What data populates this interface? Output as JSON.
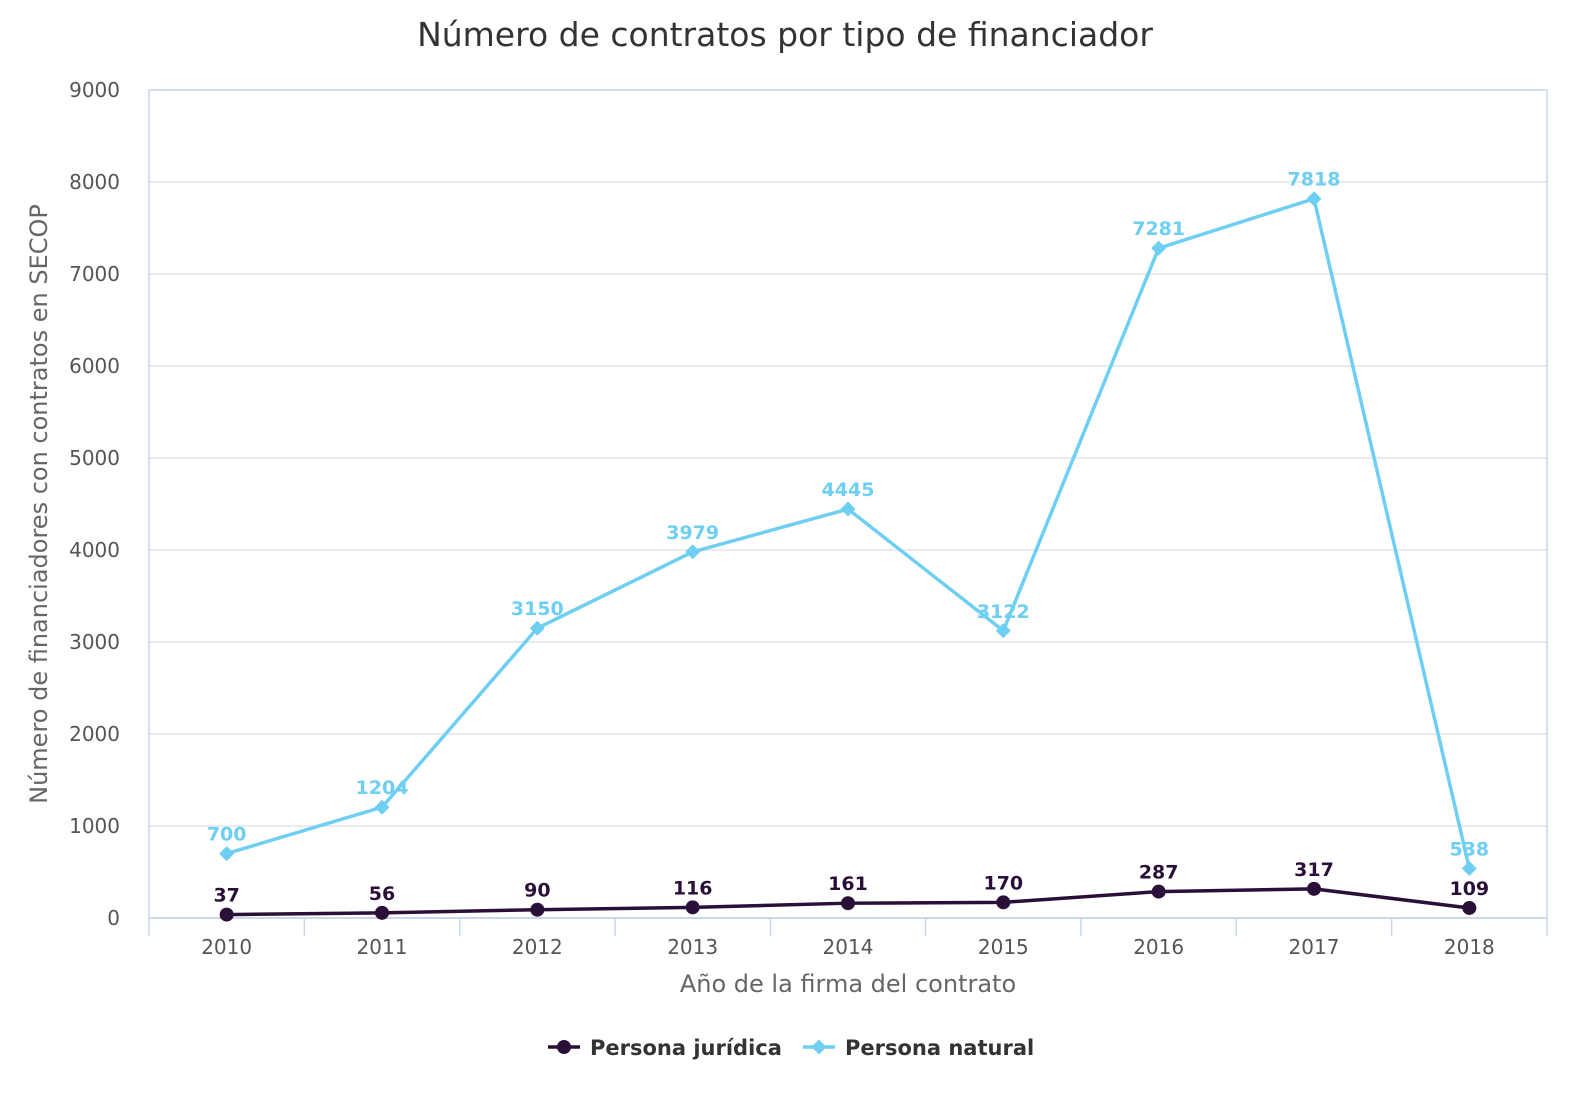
{
  "chart_data": {
    "type": "line",
    "title": "Número de contratos por tipo de financiador",
    "xlabel": "Año de la firma del contrato",
    "ylabel": "Número de financiadores con contratos en SECOP",
    "categories": [
      "2010",
      "2011",
      "2012",
      "2013",
      "2014",
      "2015",
      "2016",
      "2017",
      "2018"
    ],
    "ylim": [
      0,
      9000
    ],
    "yticks": [
      0,
      1000,
      2000,
      3000,
      4000,
      5000,
      6000,
      7000,
      8000,
      9000
    ],
    "grid": true,
    "legend_position": "bottom-center",
    "series": [
      {
        "name": "Persona jurídica",
        "marker": "circle",
        "color": "#2a1038",
        "values": [
          37,
          56,
          90,
          116,
          161,
          170,
          287,
          317,
          109
        ]
      },
      {
        "name": "Persona natural",
        "marker": "diamond",
        "color": "#6ecff2",
        "values": [
          700,
          1204,
          3150,
          3979,
          4445,
          3122,
          7281,
          7818,
          538
        ]
      }
    ]
  }
}
